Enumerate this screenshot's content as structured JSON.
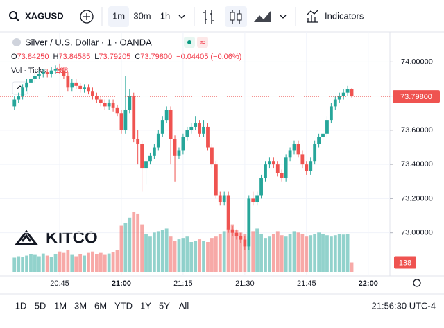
{
  "toolbar": {
    "symbol": "XAGUSD",
    "intervals": [
      "1m",
      "30m",
      "1h"
    ],
    "indicators": "Indicators"
  },
  "chart_data": {
    "type": "candlestick",
    "title": "Silver / U.S. Dollar · 1 · OANDA",
    "legend_keys": [
      "O",
      "H",
      "L",
      "C"
    ],
    "legend_values": [
      "73.84250",
      "73.84585",
      "73.79205",
      "73.79800"
    ],
    "change_label": "−0.04405 (−0.06%)",
    "volume_title": "Vol · Ticks",
    "watermark": "KITCO",
    "up_color": "#26a69a",
    "down_color": "#ef5350",
    "x": [
      "20:34",
      "20:35",
      "20:36",
      "20:37",
      "20:38",
      "20:39",
      "20:40",
      "20:41",
      "20:42",
      "20:43",
      "20:44",
      "20:45",
      "20:46",
      "20:47",
      "20:48",
      "20:49",
      "20:50",
      "20:51",
      "20:52",
      "20:53",
      "20:54",
      "20:55",
      "20:56",
      "20:57",
      "20:58",
      "20:59",
      "21:00",
      "21:01",
      "21:02",
      "21:03",
      "21:04",
      "21:05",
      "21:06",
      "21:07",
      "21:08",
      "21:09",
      "21:10",
      "21:11",
      "21:12",
      "21:13",
      "21:14",
      "21:15",
      "21:16",
      "21:17",
      "21:18",
      "21:19",
      "21:20",
      "21:21",
      "21:22",
      "21:23",
      "21:24",
      "21:25",
      "21:26",
      "21:27",
      "21:28",
      "21:29",
      "21:30",
      "21:31",
      "21:32",
      "21:33",
      "21:34",
      "21:35",
      "21:36",
      "21:37",
      "21:38",
      "21:39",
      "21:40",
      "21:41",
      "21:42",
      "21:43",
      "21:44",
      "21:45",
      "21:46",
      "21:47",
      "21:48",
      "21:49",
      "21:50",
      "21:51",
      "21:52",
      "21:53",
      "21:54",
      "21:55",
      "21:56"
    ],
    "open": [
      73.74,
      73.78,
      73.8,
      73.85,
      73.88,
      73.9,
      73.92,
      73.93,
      73.94,
      73.93,
      73.95,
      73.96,
      73.95,
      73.92,
      73.85,
      73.88,
      73.86,
      73.84,
      73.85,
      73.83,
      73.8,
      73.78,
      73.76,
      73.74,
      73.76,
      73.73,
      73.7,
      73.6,
      73.72,
      73.8,
      73.55,
      73.52,
      73.38,
      73.42,
      73.45,
      73.5,
      73.58,
      73.66,
      73.72,
      73.55,
      73.45,
      73.48,
      73.56,
      73.6,
      73.62,
      73.64,
      73.58,
      73.62,
      73.5,
      73.4,
      73.22,
      73.18,
      73.22,
      73.02,
      73.0,
      72.98,
      72.96,
      72.92,
      73.2,
      73.18,
      73.22,
      73.32,
      73.4,
      73.42,
      73.4,
      73.35,
      73.32,
      73.44,
      73.48,
      73.52,
      73.46,
      73.4,
      73.36,
      73.42,
      73.52,
      73.56,
      73.58,
      73.66,
      73.74,
      73.78,
      73.8,
      73.82,
      73.8425
    ],
    "high": [
      73.8,
      73.82,
      73.87,
      73.9,
      73.92,
      73.94,
      73.95,
      73.96,
      73.96,
      73.97,
      73.98,
      73.99,
      73.97,
      73.94,
      73.9,
      73.9,
      73.88,
      73.87,
      73.87,
      73.85,
      73.82,
      73.8,
      73.78,
      73.78,
      73.78,
      73.75,
      73.72,
      73.92,
      73.84,
      73.82,
      73.6,
      73.54,
      73.44,
      73.47,
      73.52,
      73.6,
      73.68,
      73.74,
      73.74,
      73.57,
      73.5,
      73.58,
      73.62,
      73.64,
      73.68,
      73.66,
      73.66,
      73.64,
      73.52,
      73.42,
      73.24,
      73.24,
      73.24,
      73.04,
      73.02,
      73.0,
      72.98,
      73.22,
      73.24,
      73.24,
      73.34,
      73.42,
      73.44,
      73.44,
      73.42,
      73.37,
      73.46,
      73.5,
      73.54,
      73.54,
      73.48,
      73.42,
      73.44,
      73.54,
      73.58,
      73.6,
      73.68,
      73.76,
      73.8,
      73.82,
      73.84,
      73.86,
      73.84585
    ],
    "low": [
      73.72,
      73.76,
      73.78,
      73.83,
      73.86,
      73.88,
      73.9,
      73.91,
      73.91,
      73.91,
      73.93,
      73.93,
      73.9,
      73.83,
      73.83,
      73.84,
      73.82,
      73.82,
      73.81,
      73.78,
      73.76,
      73.74,
      73.72,
      73.72,
      73.71,
      73.68,
      73.58,
      73.58,
      73.7,
      73.53,
      73.4,
      73.24,
      73.28,
      73.4,
      73.43,
      73.48,
      73.56,
      73.64,
      73.4,
      73.3,
      73.43,
      73.46,
      73.54,
      73.58,
      73.6,
      73.56,
      73.56,
      73.48,
      73.38,
      73.2,
      73.16,
      73.16,
      73.0,
      72.98,
      72.96,
      72.94,
      72.9,
      72.9,
      73.16,
      73.16,
      73.2,
      73.3,
      73.38,
      73.38,
      73.33,
      73.3,
      73.3,
      73.42,
      73.46,
      73.44,
      73.38,
      73.34,
      73.34,
      73.4,
      73.5,
      73.54,
      73.56,
      73.64,
      73.72,
      73.76,
      73.78,
      73.8,
      73.79205
    ],
    "close": [
      73.78,
      73.8,
      73.85,
      73.88,
      73.9,
      73.92,
      73.93,
      73.94,
      73.93,
      73.95,
      73.96,
      73.95,
      73.92,
      73.85,
      73.88,
      73.86,
      73.84,
      73.85,
      73.83,
      73.8,
      73.78,
      73.76,
      73.74,
      73.76,
      73.73,
      73.7,
      73.6,
      73.72,
      73.8,
      73.55,
      73.52,
      73.38,
      73.42,
      73.45,
      73.5,
      73.58,
      73.66,
      73.72,
      73.55,
      73.45,
      73.48,
      73.56,
      73.6,
      73.62,
      73.64,
      73.58,
      73.62,
      73.5,
      73.4,
      73.22,
      73.18,
      73.22,
      73.02,
      73.0,
      72.98,
      72.96,
      72.92,
      73.2,
      73.18,
      73.22,
      73.32,
      73.4,
      73.42,
      73.4,
      73.35,
      73.32,
      73.44,
      73.48,
      73.52,
      73.46,
      73.4,
      73.36,
      73.42,
      73.52,
      73.56,
      73.58,
      73.66,
      73.74,
      73.78,
      73.8,
      73.82,
      73.84,
      73.798
    ],
    "volume": [
      210,
      230,
      220,
      240,
      260,
      250,
      230,
      270,
      240,
      220,
      260,
      300,
      280,
      320,
      250,
      230,
      260,
      240,
      280,
      300,
      260,
      280,
      250,
      270,
      290,
      320,
      680,
      720,
      800,
      880,
      860,
      700,
      560,
      520,
      580,
      600,
      620,
      640,
      520,
      460,
      480,
      500,
      520,
      440,
      460,
      480,
      460,
      440,
      500,
      520,
      560,
      600,
      640,
      700,
      620,
      580,
      560,
      520,
      600,
      640,
      560,
      500,
      520,
      560,
      600,
      540,
      520,
      560,
      600,
      580,
      560,
      520,
      540,
      560,
      580,
      560,
      540,
      520,
      540,
      560,
      550,
      560,
      138
    ],
    "ylim": [
      72.747,
      74.176
    ],
    "yticks": [
      {
        "value": 74.0,
        "label": "74.00000"
      },
      {
        "value": 73.8,
        "label": "73.80000"
      },
      {
        "value": 73.6,
        "label": "73.60000"
      },
      {
        "value": 73.4,
        "label": "73.40000"
      },
      {
        "value": 73.2,
        "label": "73.20000"
      },
      {
        "value": 73.0,
        "label": "73.00000"
      }
    ],
    "xticks": [
      "20:45",
      "21:00",
      "21:15",
      "21:30",
      "21:45",
      "22:00"
    ],
    "grid": true
  },
  "footer": {
    "ranges": [
      "1D",
      "5D",
      "1M",
      "3M",
      "6M",
      "YTD",
      "1Y",
      "5Y",
      "All"
    ],
    "clock": "21:56:30 UTC-4"
  }
}
